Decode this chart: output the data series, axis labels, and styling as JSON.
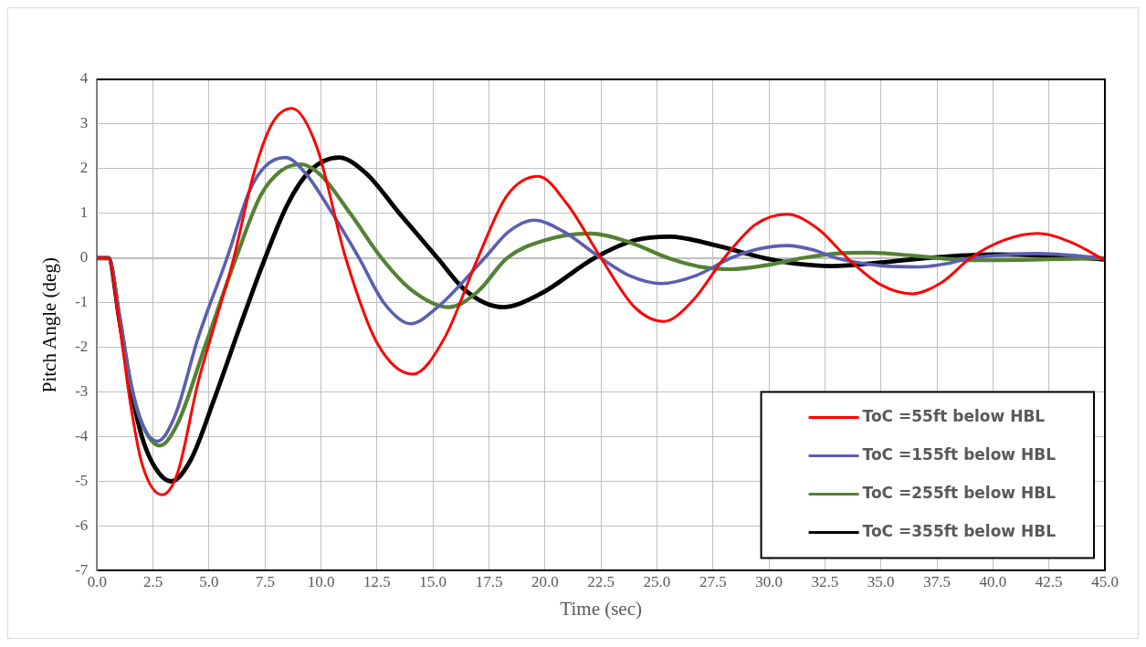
{
  "chart_data": {
    "type": "line",
    "xlabel": "Time (sec)",
    "ylabel": "Pitch Angle (deg)",
    "xlim": [
      0,
      45
    ],
    "ylim": [
      -7,
      4
    ],
    "xticks": [
      {
        "value": 0,
        "label": "0.0"
      },
      {
        "value": 2.5,
        "label": "2.5"
      },
      {
        "value": 5,
        "label": "5.0"
      },
      {
        "value": 7.5,
        "label": "7.5"
      },
      {
        "value": 10,
        "label": "10.0"
      },
      {
        "value": 12.5,
        "label": "12.5"
      },
      {
        "value": 15,
        "label": "15.0"
      },
      {
        "value": 17.5,
        "label": "17.5"
      },
      {
        "value": 20,
        "label": "20.0"
      },
      {
        "value": 22.5,
        "label": "22.5"
      },
      {
        "value": 25,
        "label": "25.0"
      },
      {
        "value": 27.5,
        "label": "27.5"
      },
      {
        "value": 30,
        "label": "30.0"
      },
      {
        "value": 32.5,
        "label": "32.5"
      },
      {
        "value": 35,
        "label": "35.0"
      },
      {
        "value": 37.5,
        "label": "37.5"
      },
      {
        "value": 40,
        "label": "40.0"
      },
      {
        "value": 42.5,
        "label": "42.5"
      },
      {
        "value": 45,
        "label": "45.0"
      }
    ],
    "yticks": [
      -7,
      -6,
      -5,
      -4,
      -3,
      -2,
      -1,
      0,
      1,
      2,
      3,
      4
    ],
    "grid": true,
    "legend": "bottom right",
    "marker": "none",
    "line_style": "solid",
    "series": [
      {
        "name": "ToC =55ft below HBL",
        "color": "#ff0000",
        "x": [
          0,
          0.5,
          1,
          1.5,
          2,
          2.9,
          3.6,
          4.5,
          5.3,
          6.1,
          7,
          7.8,
          8.7,
          9.8,
          11.1,
          12.5,
          14.1,
          15.5,
          17,
          18.3,
          19.7,
          21,
          22.5,
          24,
          25.3,
          26.6,
          28,
          29.4,
          30.8,
          32.2,
          33.5,
          35,
          36.4,
          37.7,
          39,
          40.5,
          42,
          43.5,
          45
        ],
        "values": [
          0,
          0,
          -1.5,
          -3.3,
          -4.6,
          -5.3,
          -4.8,
          -2.8,
          -1.4,
          0,
          1.9,
          3.0,
          3.35,
          2.5,
          0,
          -1.9,
          -2.6,
          -1.8,
          0,
          1.4,
          1.83,
          1.2,
          0,
          -1.1,
          -1.42,
          -0.95,
          0,
          0.75,
          0.98,
          0.65,
          0,
          -0.6,
          -0.8,
          -0.55,
          0,
          0.4,
          0.55,
          0.35,
          -0.05
        ]
      },
      {
        "name": "ToC =155ft below HBL",
        "color": "#5b5fb0",
        "x": [
          0,
          0.5,
          1,
          1.5,
          2,
          2.7,
          3.5,
          4.5,
          5.8,
          6.8,
          7.5,
          8.4,
          9.3,
          10.5,
          11.7,
          12.8,
          14,
          15.2,
          17.3,
          18.4,
          19.5,
          20.8,
          22.5,
          23.8,
          25.2,
          26.7,
          28.3,
          29.5,
          30.8,
          32,
          33,
          35,
          36.7,
          38,
          39,
          40.5,
          42,
          45
        ],
        "values": [
          0,
          0,
          -1.3,
          -2.8,
          -3.7,
          -4.1,
          -3.5,
          -1.8,
          0,
          1.5,
          2.05,
          2.25,
          1.9,
          1.0,
          0,
          -1.0,
          -1.47,
          -1.1,
          0,
          0.6,
          0.85,
          0.6,
          0,
          -0.4,
          -0.57,
          -0.4,
          0,
          0.2,
          0.28,
          0.18,
          0,
          -0.17,
          -0.2,
          -0.12,
          0,
          0.07,
          0.1,
          0
        ]
      },
      {
        "name": "ToC =255ft below HBL",
        "color": "#548235",
        "x": [
          0,
          0.5,
          1,
          1.5,
          2,
          2.8,
          3.6,
          4.8,
          6.2,
          7.3,
          8.2,
          9.1,
          10,
          11.3,
          12.7,
          14,
          15.7,
          17,
          18.3,
          20,
          22,
          23.8,
          25.5,
          27,
          28.3,
          30,
          31.5,
          33,
          34.5,
          36.5,
          39,
          45
        ],
        "values": [
          0,
          0,
          -1.3,
          -2.8,
          -3.7,
          -4.2,
          -3.7,
          -2.0,
          0,
          1.4,
          1.95,
          2.1,
          1.85,
          1.0,
          0,
          -0.7,
          -1.1,
          -0.75,
          0,
          0.4,
          0.55,
          0.35,
          0,
          -0.2,
          -0.25,
          -0.15,
          0,
          0.1,
          0.12,
          0.05,
          -0.05,
          0
        ]
      },
      {
        "name": "ToC =355ft below HBL",
        "color": "#000000",
        "x": [
          0,
          0.5,
          1,
          1.5,
          2,
          2.6,
          3.3,
          4.2,
          5.2,
          6.4,
          7.5,
          8.5,
          9.5,
          10.8,
          12,
          13.5,
          15.2,
          16.5,
          18.1,
          19.8,
          22.2,
          24,
          25.6,
          27.5,
          29.8,
          31.3,
          32.8,
          35,
          37,
          40,
          42.5,
          45
        ],
        "values": [
          0,
          0,
          -1.4,
          -2.9,
          -4.0,
          -4.7,
          -5.0,
          -4.5,
          -3.2,
          -1.5,
          0,
          1.2,
          1.95,
          2.25,
          1.9,
          1.0,
          0,
          -0.75,
          -1.1,
          -0.8,
          0,
          0.4,
          0.48,
          0.3,
          0,
          -0.13,
          -0.18,
          -0.1,
          0,
          0.08,
          0.05,
          -0.03
        ]
      }
    ]
  }
}
